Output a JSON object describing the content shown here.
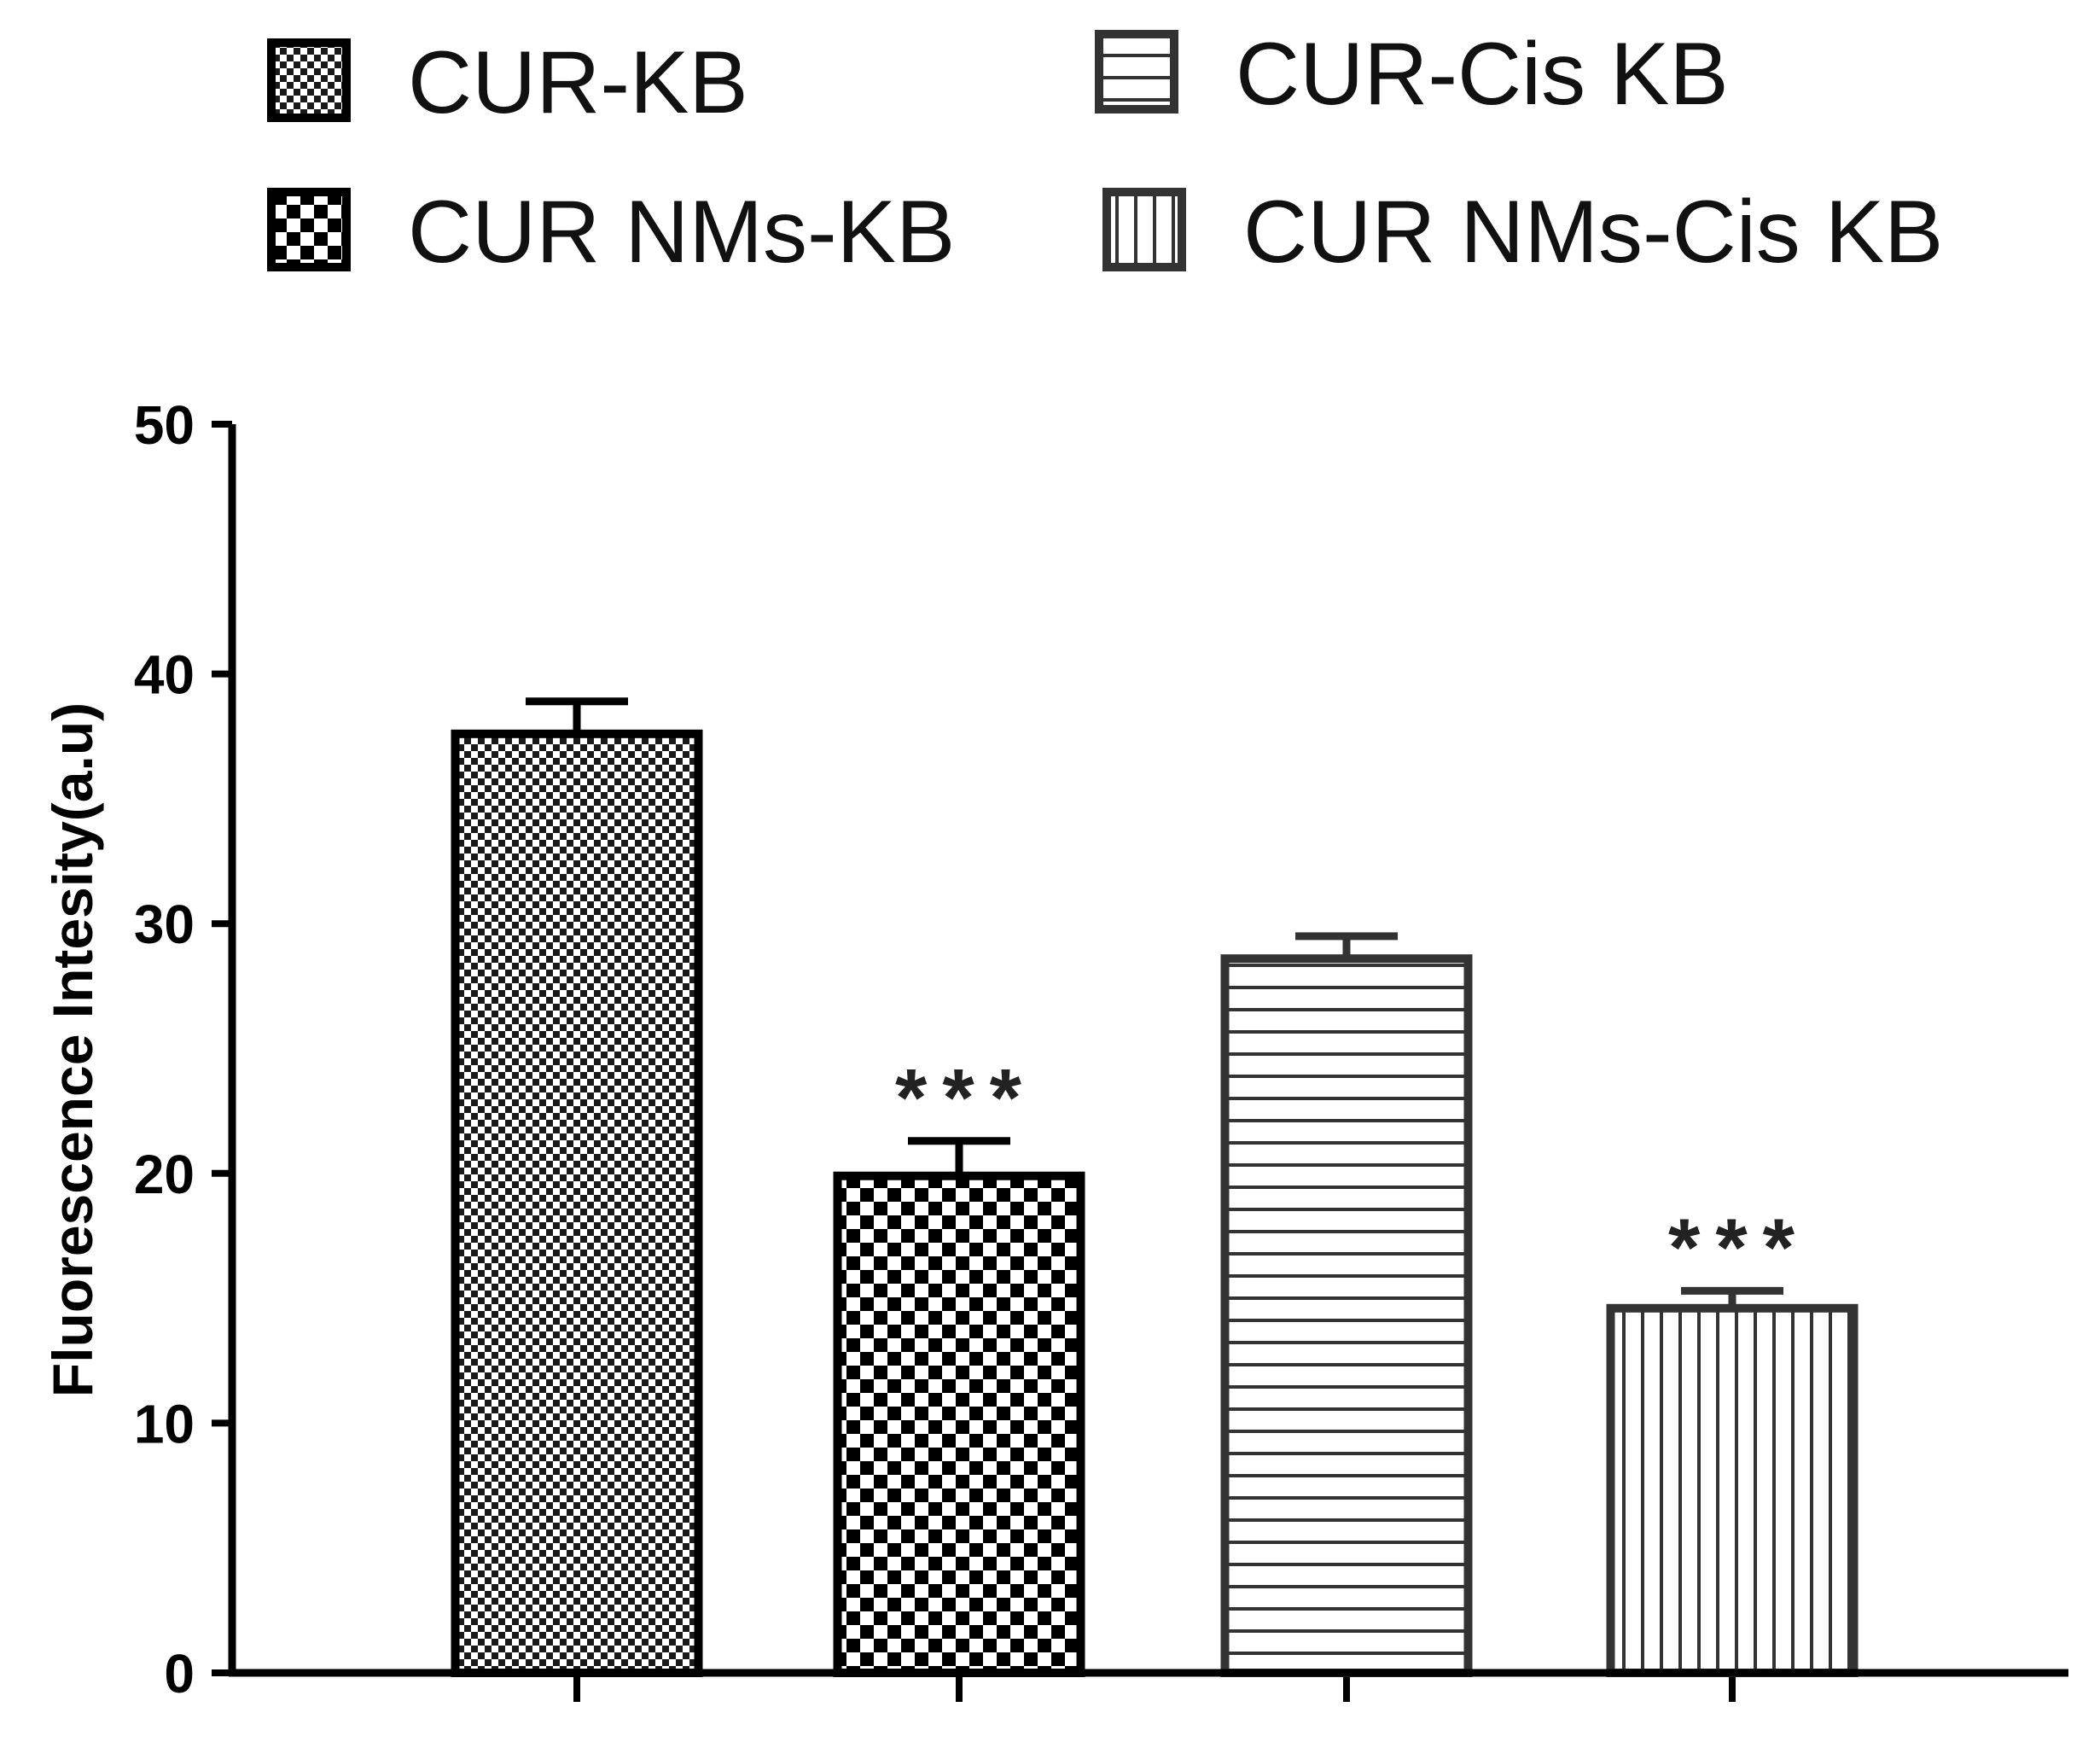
{
  "chart_data": {
    "type": "bar",
    "categories": [
      "CUR-KB",
      "CUR NMs-KB",
      "CUR-Cis KB",
      "CUR NMs-Cis KB"
    ],
    "series": [
      {
        "values": [
          37.6,
          19.9,
          28.6,
          14.6
        ],
        "errors": [
          1.3,
          1.4,
          0.9,
          0.7
        ],
        "significance": [
          "",
          "***",
          "",
          "***"
        ]
      }
    ],
    "xlabel": "",
    "ylabel": "Fluorescence Intesity(a.u)",
    "ylim": [
      0,
      50
    ],
    "yticks": [
      0,
      10,
      20,
      30,
      40,
      50
    ],
    "grid": false,
    "legend": {
      "position": "top",
      "entries": [
        {
          "label": "CUR-KB",
          "pattern": "fine-checker"
        },
        {
          "label": "CUR-Cis KB",
          "pattern": "horizontal-lines"
        },
        {
          "label": "CUR NMs-KB",
          "pattern": "coarse-checker"
        },
        {
          "label": "CUR NMs-Cis KB",
          "pattern": "vertical-lines"
        }
      ]
    },
    "colors": {
      "dark_stroke": "#000000",
      "light_stroke": "#333333",
      "fill": "#ffffff"
    }
  }
}
